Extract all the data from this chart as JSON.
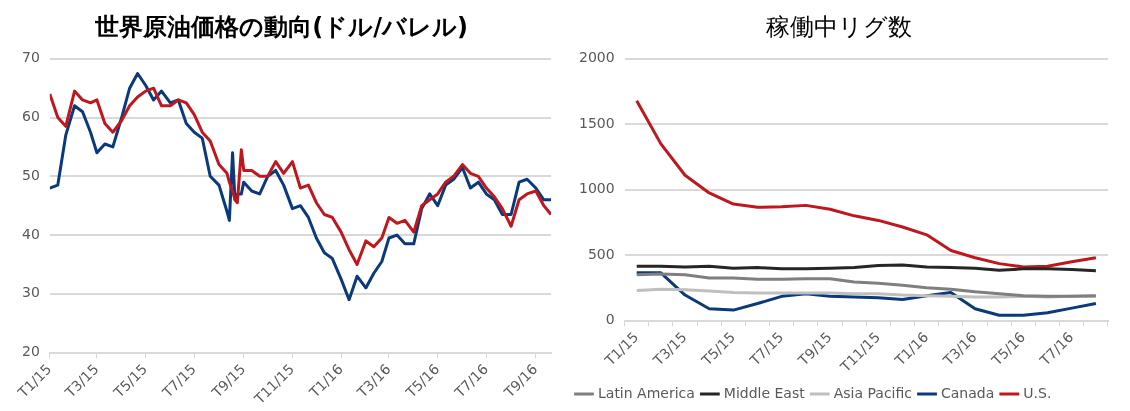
{
  "chart_data": [
    {
      "type": "line",
      "title": "世界原油価格の動向(ドル/バレル)",
      "x": [
        "2015-01-01",
        "2015-01-11",
        "2015-01-21",
        "2015-02-01",
        "2015-02-11",
        "2015-02-21",
        "2015-03-01",
        "2015-03-11",
        "2015-03-21",
        "2015-04-01",
        "2015-04-11",
        "2015-04-21",
        "2015-05-01",
        "2015-05-11",
        "2015-05-21",
        "2015-06-01",
        "2015-06-11",
        "2015-06-21",
        "2015-07-01",
        "2015-07-11",
        "2015-07-21",
        "2015-08-01",
        "2015-08-11",
        "2015-08-14",
        "2015-08-18",
        "2015-08-21",
        "2015-08-24",
        "2015-08-29",
        "2015-09-01",
        "2015-09-11",
        "2015-09-21",
        "2015-10-01",
        "2015-10-11",
        "2015-10-21",
        "2015-11-01",
        "2015-11-11",
        "2015-11-21",
        "2015-12-01",
        "2015-12-11",
        "2015-12-21",
        "2016-01-01",
        "2016-01-11",
        "2016-01-21",
        "2016-02-01",
        "2016-02-11",
        "2016-02-21",
        "2016-03-01",
        "2016-03-11",
        "2016-03-21",
        "2016-04-01",
        "2016-04-11",
        "2016-04-21",
        "2016-05-01",
        "2016-05-11",
        "2016-05-21",
        "2016-06-01",
        "2016-06-11",
        "2016-06-21",
        "2016-07-01",
        "2016-07-11",
        "2016-07-21",
        "2016-08-01",
        "2016-08-11",
        "2016-08-21",
        "2016-09-01",
        "2016-09-11",
        "2016-09-20"
      ],
      "series": [
        {
          "color": "#c0161e",
          "values": [
            64,
            60,
            58.5,
            64.5,
            63,
            62.5,
            63,
            59,
            57.5,
            59.5,
            62,
            63.5,
            64.5,
            65,
            62,
            62,
            63,
            62.5,
            60.5,
            57.5,
            56,
            52,
            50.5,
            49,
            47.5,
            46,
            45.5,
            54.5,
            51,
            51,
            50,
            50,
            52.5,
            50.5,
            52.5,
            48,
            48.5,
            45.5,
            43.5,
            43,
            40.5,
            37.5,
            35,
            39,
            38,
            39.5,
            43,
            42,
            42.5,
            40.5,
            45,
            46,
            47,
            49,
            50,
            52,
            50.5,
            50,
            48,
            46.5,
            44.5,
            41.5,
            46,
            47,
            47.5,
            45,
            43.5
          ]
        },
        {
          "color": "#0a3a7c",
          "values": [
            48,
            48.5,
            57,
            62,
            61,
            57.5,
            54,
            55.5,
            55,
            60,
            65,
            67.5,
            65.5,
            63,
            64.5,
            62.5,
            63,
            59,
            57.5,
            56.5,
            50,
            48.5,
            44,
            42.5,
            54,
            46,
            47,
            47,
            49,
            47.5,
            47,
            50,
            51,
            48.5,
            44.5,
            45,
            43,
            39.5,
            37,
            36,
            32.5,
            29,
            33,
            31,
            33.5,
            35.5,
            39.5,
            40,
            38.5,
            38.5,
            44.5,
            47,
            45,
            48.5,
            49.5,
            51.5,
            48,
            49,
            47,
            46,
            43.5,
            43.5,
            49,
            49.5,
            48,
            46,
            46
          ]
        }
      ],
      "xlim": [
        "2015-01-01",
        "2016-09-20"
      ],
      "xticks": [
        {
          "value": "2015-01-01",
          "label": "T1/15"
        },
        {
          "value": "2015-03-01",
          "label": "T3/15"
        },
        {
          "value": "2015-05-01",
          "label": "T5/15"
        },
        {
          "value": "2015-07-01",
          "label": "T7/15"
        },
        {
          "value": "2015-09-01",
          "label": "T9/15"
        },
        {
          "value": "2015-11-01",
          "label": "T11/15"
        },
        {
          "value": "2016-01-01",
          "label": "T1/16"
        },
        {
          "value": "2016-03-01",
          "label": "T3/16"
        },
        {
          "value": "2016-05-01",
          "label": "T5/16"
        },
        {
          "value": "2016-07-01",
          "label": "T7/16"
        },
        {
          "value": "2016-09-01",
          "label": "T9/16"
        }
      ],
      "ylim": [
        20,
        70
      ],
      "yticks": [
        20,
        30,
        40,
        50,
        60,
        70
      ],
      "grid": "y",
      "legend": false
    },
    {
      "type": "line",
      "title": "稼働中リグ数",
      "categories": [
        "T1/15",
        null,
        "T3/15",
        null,
        "T5/15",
        null,
        "T7/15",
        null,
        "T9/15",
        null,
        "T11/15",
        null,
        "T1/16",
        null,
        "T3/16",
        null,
        "T5/16",
        null,
        "T7/16",
        null
      ],
      "series": [
        {
          "name": "Latin America",
          "color": "#7f7f7f",
          "values": [
            350,
            355,
            350,
            325,
            325,
            315,
            315,
            320,
            320,
            295,
            285,
            270,
            250,
            240,
            220,
            205,
            190,
            185,
            185,
            190
          ]
        },
        {
          "name": "Middle East",
          "color": "#262626",
          "values": [
            415,
            415,
            410,
            415,
            400,
            405,
            395,
            395,
            400,
            405,
            420,
            425,
            410,
            405,
            400,
            385,
            395,
            395,
            390,
            380
          ]
        },
        {
          "name": "Asia Pacific",
          "color": "#bfbfbf",
          "values": [
            230,
            240,
            235,
            225,
            215,
            210,
            210,
            210,
            210,
            205,
            205,
            195,
            190,
            185,
            180,
            180,
            185,
            180,
            185,
            185
          ]
        },
        {
          "name": "Canada",
          "color": "#0a3a7c",
          "values": [
            365,
            365,
            195,
            90,
            80,
            130,
            185,
            205,
            185,
            180,
            175,
            160,
            190,
            215,
            90,
            40,
            40,
            60,
            95,
            130
          ]
        },
        {
          "name": "U.S.",
          "color": "#c0161e",
          "values": [
            1680,
            1350,
            1110,
            975,
            890,
            865,
            870,
            880,
            850,
            800,
            765,
            715,
            655,
            535,
            480,
            435,
            410,
            415,
            450,
            480
          ]
        }
      ],
      "ylim": [
        0,
        2000
      ],
      "yticks": [
        0,
        500,
        1000,
        1500,
        2000
      ],
      "grid": "y",
      "legend": "bottom"
    }
  ]
}
